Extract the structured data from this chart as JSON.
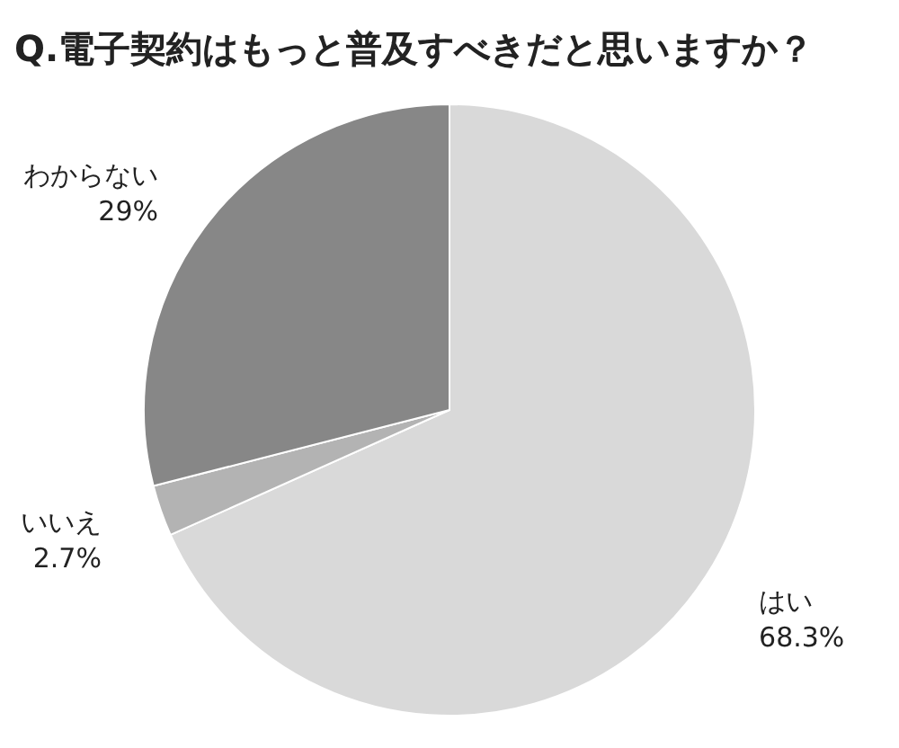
{
  "chart_data": {
    "type": "pie",
    "title": "Q.電子契約はもっと普及すべきだと思いますか？",
    "categories": [
      "はい",
      "いいえ",
      "わからない"
    ],
    "values": [
      68.3,
      2.7,
      29
    ],
    "value_labels": [
      "68.3%",
      "2.7%",
      "29%"
    ],
    "colors": [
      "#d9d9d9",
      "#b3b3b3",
      "#878787"
    ]
  }
}
